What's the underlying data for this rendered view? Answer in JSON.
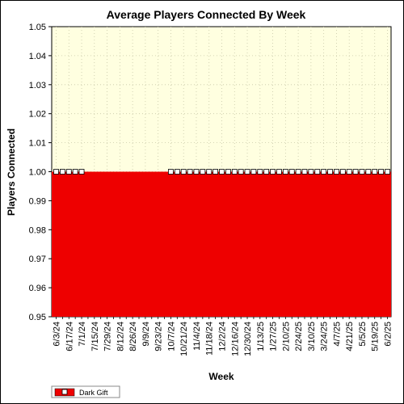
{
  "chart_data": {
    "type": "area",
    "title": "Average Players Connected By Week",
    "xlabel": "Week",
    "ylabel": "Players Connected",
    "ylim": [
      0.95,
      1.05
    ],
    "yticks": [
      "0.95",
      "0.96",
      "0.97",
      "0.98",
      "0.99",
      "1.00",
      "1.01",
      "1.02",
      "1.03",
      "1.04",
      "1.05"
    ],
    "grid": true,
    "legend_position": "bottom-left",
    "colors": {
      "plot_background": "#ffffe0",
      "series": "#ee0000",
      "marker_fill": "#ffffff"
    },
    "x": [
      "6/3/24",
      "6/10/24",
      "6/17/24",
      "6/24/24",
      "7/1/24",
      "7/8/24",
      "7/15/24",
      "7/22/24",
      "7/29/24",
      "8/5/24",
      "8/12/24",
      "8/19/24",
      "8/26/24",
      "9/2/24",
      "9/9/24",
      "9/16/24",
      "9/23/24",
      "9/30/24",
      "10/7/24",
      "10/14/24",
      "10/21/24",
      "10/28/24",
      "11/4/24",
      "11/11/24",
      "11/18/24",
      "11/25/24",
      "12/2/24",
      "12/9/24",
      "12/16/24",
      "12/23/24",
      "12/30/24",
      "1/6/25",
      "1/13/25",
      "1/20/25",
      "1/27/25",
      "2/3/25",
      "2/10/25",
      "2/17/25",
      "2/24/25",
      "3/3/25",
      "3/10/25",
      "3/17/25",
      "3/24/25",
      "3/31/25",
      "4/7/25",
      "4/14/25",
      "4/21/25",
      "4/28/25",
      "5/5/25",
      "5/12/25",
      "5/19/25",
      "5/26/25",
      "6/2/25"
    ],
    "xtick_labels": [
      "6/3/24",
      "6/17/24",
      "7/1/24",
      "7/15/24",
      "7/29/24",
      "8/12/24",
      "8/26/24",
      "9/9/24",
      "9/23/24",
      "10/7/24",
      "10/21/24",
      "11/4/24",
      "11/18/24",
      "12/2/24",
      "12/16/24",
      "12/30/24",
      "1/13/25",
      "1/27/25",
      "2/10/25",
      "2/24/25",
      "3/10/25",
      "3/24/25",
      "4/7/25",
      "4/21/25",
      "5/5/25",
      "5/19/25",
      "6/2/25"
    ],
    "series": [
      {
        "name": "Dark Gift",
        "values": [
          1,
          1,
          1,
          1,
          1,
          null,
          null,
          null,
          null,
          null,
          null,
          null,
          null,
          null,
          null,
          null,
          null,
          null,
          1,
          1,
          1,
          1,
          1,
          1,
          1,
          1,
          1,
          1,
          1,
          1,
          1,
          1,
          1,
          1,
          1,
          1,
          1,
          1,
          1,
          1,
          1,
          1,
          1,
          1,
          1,
          1,
          1,
          1,
          1,
          1,
          1,
          1,
          1
        ]
      }
    ]
  }
}
